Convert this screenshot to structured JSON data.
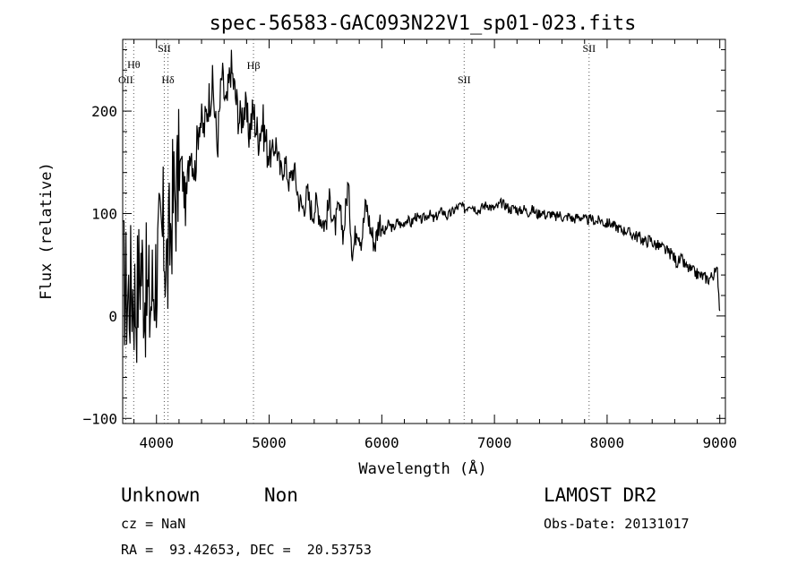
{
  "chart_data": {
    "type": "line",
    "title": "spec-56583-GAC093N22V1_sp01-023.fits",
    "xlabel": "Wavelength (Å)",
    "ylabel": "Flux (relative)",
    "xlim": [
      3700,
      9050
    ],
    "ylim": [
      -105,
      270
    ],
    "xticks": [
      4000,
      5000,
      6000,
      7000,
      8000,
      9000
    ],
    "yticks": [
      -100,
      0,
      100,
      200
    ],
    "grid": false,
    "series": [
      {
        "x": [
          3700,
          3740,
          3780,
          3820,
          3860,
          3900,
          3940,
          3980,
          4020,
          4060,
          4100,
          4140,
          4180,
          4220,
          4260,
          4300,
          4340,
          4380,
          4420,
          4460,
          4500,
          4540,
          4580,
          4620,
          4660,
          4700,
          4740,
          4780,
          4820,
          4860,
          4900,
          4940,
          4980,
          5020,
          5060,
          5100,
          5140,
          5180,
          5220,
          5260,
          5300,
          5340,
          5380,
          5420,
          5460,
          5500,
          5540,
          5580,
          5620,
          5660,
          5700,
          5740,
          5780,
          5820,
          5860,
          5900,
          5940,
          5980,
          6020,
          6060,
          6100,
          6140,
          6180,
          6220,
          6260,
          6300,
          6340,
          6380,
          6420,
          6460,
          6500,
          6540,
          6580,
          6620,
          6660,
          6700,
          6740,
          6780,
          6820,
          6860,
          6900,
          6940,
          6980,
          7020,
          7060,
          7100,
          7140,
          7180,
          7220,
          7260,
          7300,
          7340,
          7380,
          7420,
          7460,
          7500,
          7540,
          7580,
          7620,
          7660,
          7700,
          7740,
          7780,
          7820,
          7860,
          7900,
          7940,
          7980,
          8020,
          8060,
          8100,
          8140,
          8180,
          8220,
          8260,
          8300,
          8340,
          8380,
          8420,
          8460,
          8500,
          8540,
          8580,
          8620,
          8660,
          8700,
          8740,
          8780,
          8820,
          8860,
          8900,
          8940,
          8980,
          9000
        ],
        "y": [
          40,
          20,
          30,
          15,
          55,
          25,
          10,
          35,
          60,
          80,
          45,
          110,
          125,
          150,
          105,
          170,
          140,
          195,
          180,
          210,
          225,
          165,
          235,
          200,
          245,
          215,
          190,
          205,
          180,
          200,
          175,
          190,
          165,
          155,
          170,
          140,
          150,
          130,
          145,
          115,
          105,
          120,
          100,
          110,
          95,
          90,
          115,
          85,
          105,
          80,
          130,
          60,
          90,
          75,
          110,
          85,
          70,
          95,
          80,
          90,
          85,
          92,
          88,
          95,
          90,
          98,
          93,
          96,
          100,
          94,
          99,
          103,
          97,
          101,
          105,
          108,
          104,
          110,
          106,
          103,
          107,
          109,
          105,
          106,
          110,
          108,
          104,
          106,
          102,
          105,
          101,
          104,
          99,
          102,
          98,
          100,
          96,
          99,
          95,
          98,
          94,
          97,
          96,
          93,
          95,
          92,
          94,
          90,
          91,
          88,
          86,
          84,
          83,
          80,
          78,
          76,
          72,
          75,
          70,
          68,
          66,
          62,
          60,
          52,
          55,
          48,
          45,
          42,
          40,
          38,
          36,
          40,
          44,
          5
        ]
      }
    ],
    "lines": [
      {
        "label": "OII",
        "x": 3727
      },
      {
        "label": "Hθ",
        "x": 3798
      },
      {
        "label": "SII",
        "x": 4069
      },
      {
        "label": "Hδ",
        "x": 4102
      },
      {
        "label": "Hβ",
        "x": 4861
      },
      {
        "label": "SII",
        "x": 6731
      },
      {
        "label": "SII",
        "x": 7840
      }
    ]
  },
  "info": {
    "class_label": "Unknown",
    "subclass_label": "Non",
    "survey": "LAMOST DR2",
    "cz": "cz = NaN",
    "obs_date": "Obs-Date: 20131017",
    "coords": "RA =  93.42653, DEC =  20.53753"
  }
}
